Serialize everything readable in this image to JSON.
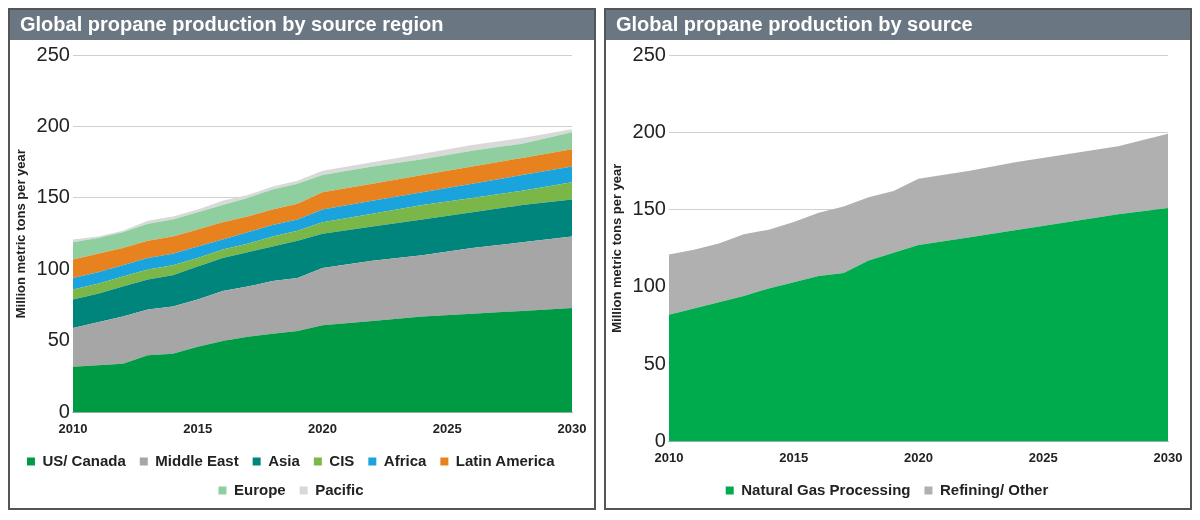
{
  "chart_data": [
    {
      "type": "area",
      "title": "Global propane production by source region",
      "ylabel": "Million metric tons per year",
      "stacked": true,
      "grid": "y",
      "legend": "bottom",
      "xlim": [
        2010,
        2030
      ],
      "xticks": [
        2010,
        2015,
        2020,
        2025,
        2030
      ],
      "ylim": [
        0,
        250
      ],
      "yticks": [
        0,
        50,
        100,
        150,
        200,
        250
      ],
      "x": [
        2010,
        2011,
        2012,
        2013,
        2014,
        2015,
        2016,
        2017,
        2018,
        2019,
        2020,
        2022,
        2024,
        2026,
        2028,
        2030
      ],
      "series": [
        {
          "name": "US/ Canada",
          "color": "#009a44",
          "values": [
            32,
            33,
            34,
            40,
            41,
            46,
            50,
            53,
            55,
            57,
            61,
            64,
            67,
            69,
            71,
            73
          ]
        },
        {
          "name": "Middle East",
          "color": "#a6a6a6",
          "values": [
            27,
            30,
            33,
            32,
            33,
            33,
            35,
            35,
            37,
            37,
            40,
            42,
            43,
            46,
            48,
            50
          ]
        },
        {
          "name": "Asia",
          "color": "#00857c",
          "values": [
            20,
            20,
            21,
            21,
            22,
            23,
            23,
            24,
            24,
            26,
            24,
            24,
            25,
            25,
            26,
            26
          ]
        },
        {
          "name": "CIS",
          "color": "#7ab648",
          "values": [
            7,
            7,
            7,
            7,
            7,
            6,
            6,
            6,
            7,
            7,
            8,
            9,
            10,
            10,
            10,
            12
          ]
        },
        {
          "name": "Africa",
          "color": "#1aa3dc",
          "values": [
            8,
            8,
            8,
            8,
            8,
            8,
            7,
            8,
            8,
            8,
            9,
            9,
            9,
            10,
            11,
            11
          ]
        },
        {
          "name": "Latin America",
          "color": "#e8821e",
          "values": [
            13,
            13,
            12,
            12,
            12,
            12,
            12,
            11,
            11,
            11,
            12,
            12,
            12,
            12,
            12,
            12
          ]
        },
        {
          "name": "Europe",
          "color": "#8fcf9f",
          "values": [
            12,
            11,
            11,
            12,
            12,
            12,
            12,
            13,
            14,
            14,
            12,
            12,
            11,
            11,
            10,
            12
          ]
        },
        {
          "name": "Pacific",
          "color": "#d9d9d9",
          "values": [
            2,
            1,
            1,
            2,
            2,
            2,
            3,
            2,
            2,
            2,
            3,
            3,
            4,
            4,
            4,
            2
          ]
        }
      ]
    },
    {
      "type": "area",
      "title": "Global propane production by source",
      "ylabel": "Million metric tons per year",
      "stacked": true,
      "grid": "y",
      "legend": "bottom",
      "xlim": [
        2010,
        2030
      ],
      "xticks": [
        2010,
        2015,
        2020,
        2025,
        2030
      ],
      "ylim": [
        0,
        250
      ],
      "yticks": [
        0,
        50,
        100,
        150,
        200,
        250
      ],
      "x": [
        2010,
        2011,
        2012,
        2013,
        2014,
        2015,
        2016,
        2017,
        2018,
        2019,
        2020,
        2022,
        2024,
        2026,
        2028,
        2030
      ],
      "series": [
        {
          "name": "Natural Gas Processing",
          "color": "#00ab4e",
          "values": [
            82,
            86,
            90,
            94,
            99,
            103,
            107,
            109,
            117,
            122,
            127,
            132,
            137,
            142,
            147,
            151
          ]
        },
        {
          "name": "Refining/ Other",
          "color": "#b0b0b0",
          "values": [
            39,
            38,
            38,
            40,
            38,
            39,
            41,
            43,
            41,
            40,
            43,
            43,
            44,
            44,
            44,
            48
          ]
        }
      ]
    }
  ]
}
